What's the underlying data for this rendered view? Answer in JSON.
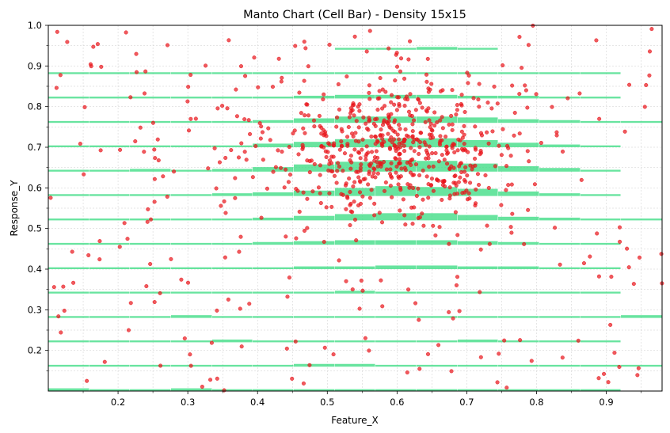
{
  "chart_data": {
    "type": "scatter",
    "title": "Manto Chart (Cell Bar) - Density 15x15",
    "xlabel": "Feature_X",
    "ylabel": "Response_Y",
    "xlim": [
      0.1,
      0.98
    ],
    "ylim": [
      0.1,
      1.0
    ],
    "x_ticks": [
      "0.2",
      "0.3",
      "0.4",
      "0.5",
      "0.6",
      "0.7",
      "0.8",
      "0.9"
    ],
    "y_ticks": [
      "0.2",
      "0.3",
      "0.4",
      "0.5",
      "0.6",
      "0.7",
      "0.8",
      "0.9",
      "1.0"
    ],
    "grid": true,
    "grid_bins": 15,
    "colors": {
      "points": "#e8141a",
      "bars": "#3ddc84",
      "grid": "#cccccc"
    },
    "point_cluster": {
      "center": [
        0.6,
        0.7
      ],
      "spread": [
        0.09,
        0.09
      ],
      "count": 560
    },
    "point_background_count": 260,
    "cells": {
      "x_edges": [
        0.1,
        0.159,
        0.217,
        0.276,
        0.335,
        0.393,
        0.452,
        0.511,
        0.569,
        0.628,
        0.687,
        0.745,
        0.804,
        0.863,
        0.921,
        0.98
      ],
      "y_edges": [
        0.1,
        0.16,
        0.22,
        0.28,
        0.34,
        0.4,
        0.46,
        0.52,
        0.58,
        0.64,
        0.7,
        0.76,
        0.82,
        0.88,
        0.94,
        1.0
      ],
      "counts": [
        [
          2,
          1,
          1,
          2,
          1,
          1,
          1,
          1,
          1,
          1,
          1,
          1,
          1,
          1,
          0
        ],
        [
          1,
          1,
          1,
          1,
          1,
          1,
          2,
          2,
          1,
          1,
          1,
          1,
          1,
          1,
          1
        ],
        [
          1,
          1,
          1,
          1,
          2,
          1,
          1,
          1,
          1,
          1,
          2,
          1,
          1,
          1,
          0
        ],
        [
          1,
          1,
          1,
          2,
          1,
          1,
          1,
          1,
          1,
          1,
          1,
          1,
          1,
          1,
          2
        ],
        [
          1,
          1,
          1,
          1,
          1,
          1,
          1,
          2,
          1,
          1,
          1,
          1,
          1,
          1,
          0
        ],
        [
          1,
          1,
          1,
          1,
          1,
          1,
          2,
          2,
          3,
          3,
          2,
          2,
          1,
          1,
          0
        ],
        [
          1,
          1,
          1,
          1,
          1,
          2,
          3,
          4,
          4,
          4,
          3,
          2,
          1,
          1,
          0
        ],
        [
          1,
          1,
          1,
          1,
          1,
          2,
          4,
          6,
          7,
          7,
          5,
          3,
          2,
          1,
          1
        ],
        [
          1,
          1,
          1,
          1,
          2,
          3,
          5,
          8,
          10,
          9,
          7,
          4,
          2,
          1,
          0
        ],
        [
          1,
          1,
          2,
          1,
          2,
          4,
          7,
          10,
          12,
          11,
          8,
          5,
          3,
          1,
          0
        ],
        [
          1,
          1,
          1,
          1,
          1,
          3,
          5,
          8,
          9,
          9,
          7,
          4,
          2,
          1,
          0
        ],
        [
          1,
          1,
          1,
          1,
          1,
          2,
          4,
          6,
          6,
          6,
          5,
          3,
          2,
          1,
          1
        ],
        [
          1,
          1,
          1,
          1,
          1,
          1,
          2,
          3,
          3,
          3,
          2,
          2,
          1,
          1,
          0
        ],
        [
          1,
          1,
          1,
          1,
          1,
          1,
          1,
          1,
          1,
          1,
          1,
          1,
          1,
          1,
          0
        ],
        [
          0,
          0,
          0,
          0,
          0,
          0,
          0,
          1,
          1,
          2,
          1,
          0,
          0,
          0,
          0
        ]
      ]
    }
  }
}
